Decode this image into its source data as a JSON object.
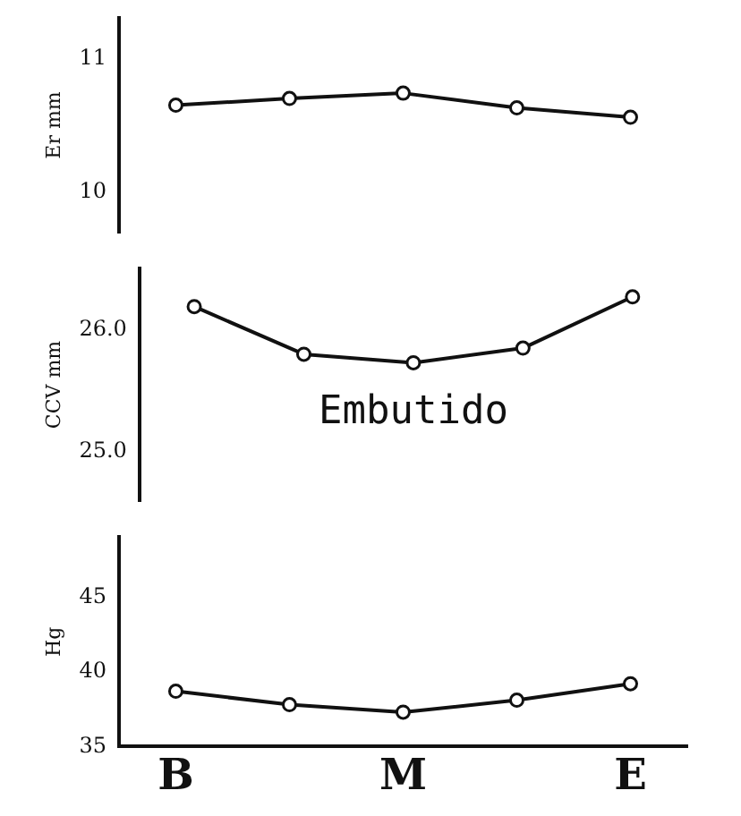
{
  "chart_data": [
    {
      "type": "line",
      "ylabel": "Er mm",
      "categories": [
        null,
        null,
        null,
        null,
        null
      ],
      "tick_labels": "y",
      "ylim": [
        9.7,
        11.3
      ],
      "yticks": [
        10,
        11
      ],
      "marker": "circle",
      "grid": false,
      "legend": false,
      "series": [
        {
          "color": "#111111",
          "values": [
            10.65,
            10.7,
            10.74,
            10.63,
            10.56
          ]
        }
      ]
    },
    {
      "type": "line",
      "ylabel": "CCV mm",
      "categories": [
        null,
        null,
        null,
        null,
        null
      ],
      "tick_labels": "y",
      "ylim": [
        24.6,
        26.5
      ],
      "yticks": [
        {
          "value": 25,
          "label": "25.0"
        },
        {
          "value": 26,
          "label": "26.0"
        }
      ],
      "marker": "circle",
      "grid": false,
      "legend": false,
      "annotations": [
        "Embutido"
      ],
      "series": [
        {
          "color": "#111111",
          "values": [
            26.19,
            25.8,
            25.73,
            25.85,
            26.27
          ]
        }
      ]
    },
    {
      "type": "line",
      "ylabel": "Hg",
      "categories": [
        "B",
        null,
        "M",
        null,
        "E"
      ],
      "ylim": [
        35,
        49
      ],
      "yticks": [
        35,
        40,
        45
      ],
      "marker": "circle",
      "grid": false,
      "legend": false,
      "series": [
        {
          "color": "#111111",
          "values": [
            38.7,
            37.8,
            37.3,
            38.1,
            39.2
          ]
        }
      ]
    }
  ]
}
